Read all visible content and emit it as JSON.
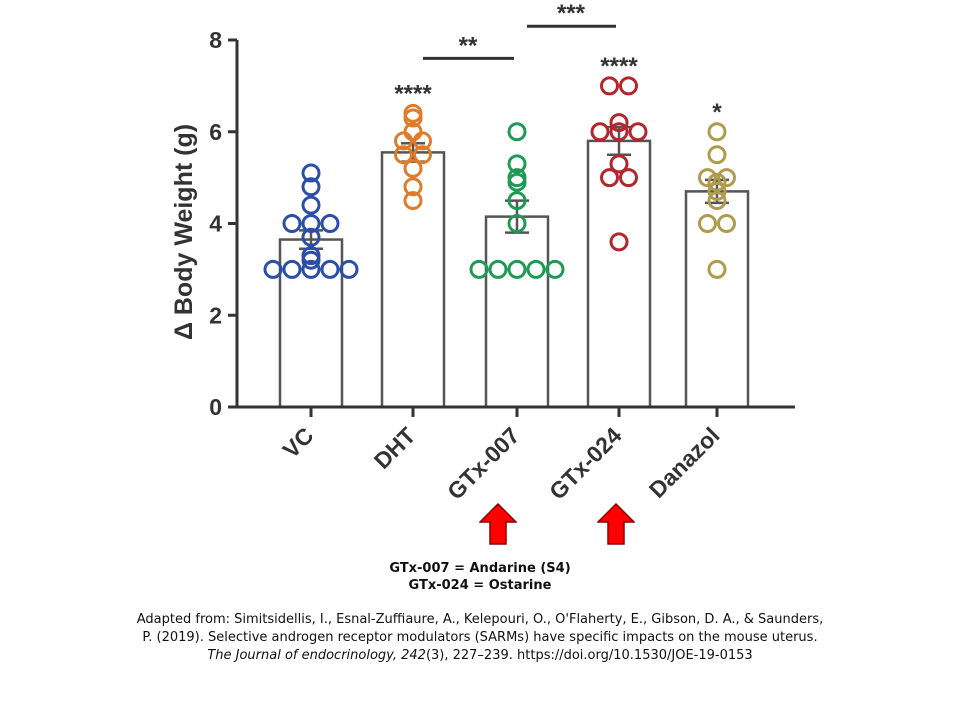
{
  "chart_data": {
    "type": "bar",
    "title": "",
    "xlabel": "",
    "ylabel": "Δ Body Weight (g)",
    "ylim": [
      0,
      8
    ],
    "yticks": [
      "0",
      "2",
      "4",
      "6",
      "8"
    ],
    "grid": false,
    "categories": [
      "VC",
      "DHT",
      "GTx-007",
      "GTx-024",
      "Danazol"
    ],
    "values": [
      3.65,
      5.55,
      4.15,
      5.8,
      4.7
    ],
    "sem": [
      0.2,
      0.2,
      0.35,
      0.3,
      0.25
    ],
    "colors": [
      "#2b4fa8",
      "#e07b2a",
      "#1f9a55",
      "#b3262e",
      "#b09b4d"
    ],
    "points": [
      [
        5.1,
        4.8,
        4.4,
        4.0,
        4.0,
        4.0,
        3.7,
        3.3,
        3.2,
        3.0,
        3.0,
        3.0,
        3.0,
        3.0
      ],
      [
        6.4,
        6.3,
        6.0,
        5.8,
        5.8,
        5.5,
        5.5,
        5.2,
        4.8,
        4.5
      ],
      [
        6.0,
        5.3,
        5.0,
        4.9,
        4.5,
        4.0,
        3.0,
        3.0,
        3.0,
        3.0,
        3.0
      ],
      [
        7.0,
        7.0,
        6.2,
        6.0,
        6.0,
        6.0,
        5.3,
        5.0,
        5.0,
        3.6
      ],
      [
        6.0,
        5.5,
        5.0,
        5.0,
        4.9,
        4.7,
        4.5,
        4.0,
        4.0,
        3.0
      ]
    ],
    "significance": [
      "",
      "****",
      "",
      "****",
      "*"
    ],
    "comparisons": [
      {
        "from": 1,
        "to": 2,
        "label": "**",
        "y": 7.6
      },
      {
        "from": 2,
        "to": 3,
        "label": "***",
        "y": 8.3
      }
    ]
  },
  "highlighted_categories": [
    2,
    3
  ],
  "key": {
    "line1": "GTx-007 = Andarine (S4)",
    "line2": "GTx-024 = Ostarine"
  },
  "citation": {
    "before": "Adapted from: Simitsidellis, I., Esnal-Zuffiaure, A., Kelepouri, O., O'Flaherty, E., Gibson, D. A., & Saunders, P. (2019). Selective androgen receptor modulators (SARMs) have specific impacts on the mouse uterus. ",
    "journal": "The Journal of endocrinology, 242",
    "after": "(3), 227–239. https://doi.org/10.1530/JOE-19-0153"
  }
}
